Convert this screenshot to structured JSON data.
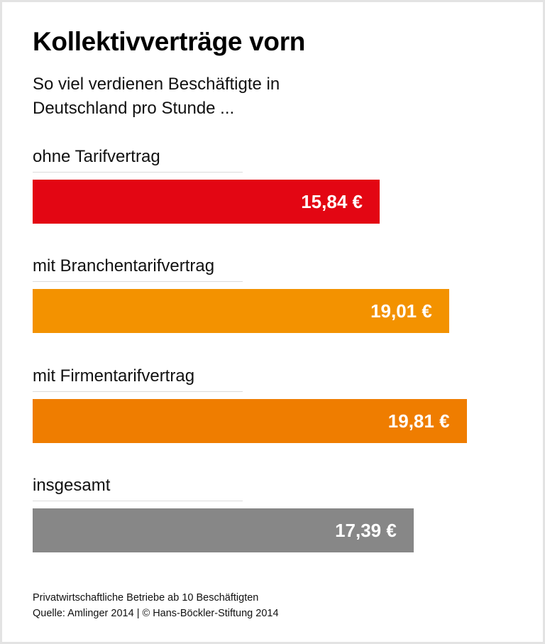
{
  "chart_data": {
    "type": "bar",
    "orientation": "horizontal",
    "title": "Kollektivverträge vorn",
    "subtitle": "So viel verdienen Beschäftigte in Deutschland pro Stunde ...",
    "categories": [
      "ohne Tarifvertrag",
      "mit Branchentarifvertrag",
      "mit Firmentarifvertrag",
      "insgesamt"
    ],
    "values": [
      15.84,
      19.01,
      19.81,
      17.39
    ],
    "value_labels": [
      "15,84 €",
      "19,01 €",
      "19,81 €",
      "17,39 €"
    ],
    "colors": [
      "#e30613",
      "#f39200",
      "#ef7d00",
      "#878787"
    ],
    "unit": "€",
    "xlim": [
      0,
      22
    ],
    "grid": false
  },
  "footer": {
    "note": "Privatwirtschaftliche Betriebe ab 10 Beschäftigten",
    "source": "Quelle: Amlinger 2014 | © Hans-Böckler-Stiftung 2014"
  }
}
